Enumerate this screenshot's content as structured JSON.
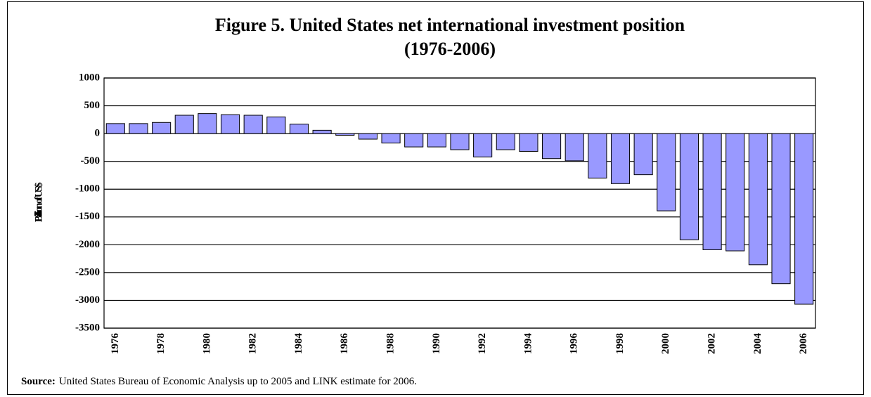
{
  "chart_data": {
    "type": "bar",
    "title": [
      "Figure 5.  United States net international investment position",
      "(1976-2006)"
    ],
    "ylabel": "Billion of US$",
    "source_label": "Source:",
    "source_text": "United States Bureau of Economic Analysis up to 2005 and LINK estimate for 2006.",
    "categories": [
      "1976",
      null,
      "1978",
      null,
      "1980",
      null,
      "1982",
      null,
      "1984",
      null,
      "1986",
      null,
      "1988",
      null,
      "1990",
      null,
      "1992",
      null,
      "1994",
      null,
      "1996",
      null,
      "1998",
      null,
      "2000",
      null,
      "2002",
      null,
      "2004",
      null,
      "2006"
    ],
    "values": [
      180,
      180,
      200,
      330,
      360,
      340,
      330,
      300,
      170,
      60,
      -30,
      -100,
      -170,
      -240,
      -240,
      -290,
      -420,
      -290,
      -320,
      -450,
      -490,
      -800,
      -900,
      -740,
      -1390,
      -1910,
      -2090,
      -2110,
      -2360,
      -2700,
      -3070
    ],
    "color": "#9999ff",
    "ylim": [
      -3500,
      1000
    ],
    "yticks": [
      -3500,
      -3000,
      -2500,
      -2000,
      -1500,
      -1000,
      -500,
      0,
      500,
      1000
    ],
    "grid": true
  }
}
